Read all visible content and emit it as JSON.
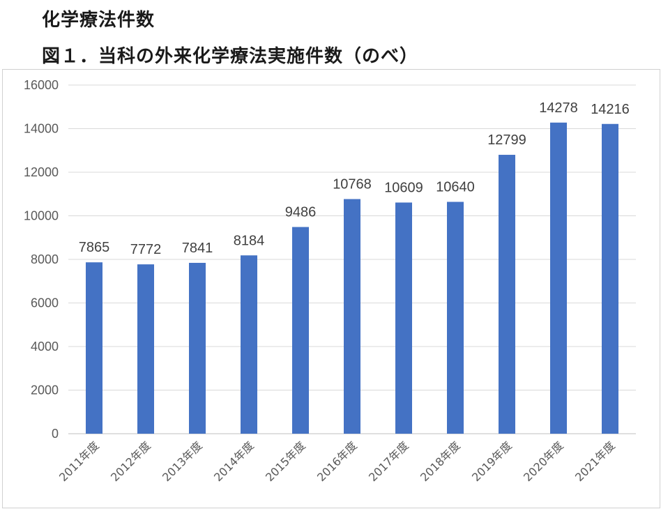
{
  "page": {
    "heading": "化学療法件数",
    "figure_title": "図１．当科の外来化学療法実施件数（のべ）"
  },
  "colors": {
    "bar": "#4472C4",
    "grid": "#d9d9d9",
    "axis": "#bfbfbf"
  },
  "chart_data": {
    "type": "bar",
    "title": "",
    "xlabel": "",
    "ylabel": "",
    "categories": [
      "2011年度",
      "2012年度",
      "2013年度",
      "2014年度",
      "2015年度",
      "2016年度",
      "2017年度",
      "2018年度",
      "2019年度",
      "2020年度",
      "2021年度"
    ],
    "values": [
      7865,
      7772,
      7841,
      8184,
      9486,
      10768,
      10609,
      10640,
      12799,
      14278,
      14216
    ],
    "ylim": [
      0,
      16000
    ],
    "yticks": [
      0,
      2000,
      4000,
      6000,
      8000,
      10000,
      12000,
      14000,
      16000
    ],
    "grid": true,
    "legend": "none",
    "data_labels": true
  }
}
